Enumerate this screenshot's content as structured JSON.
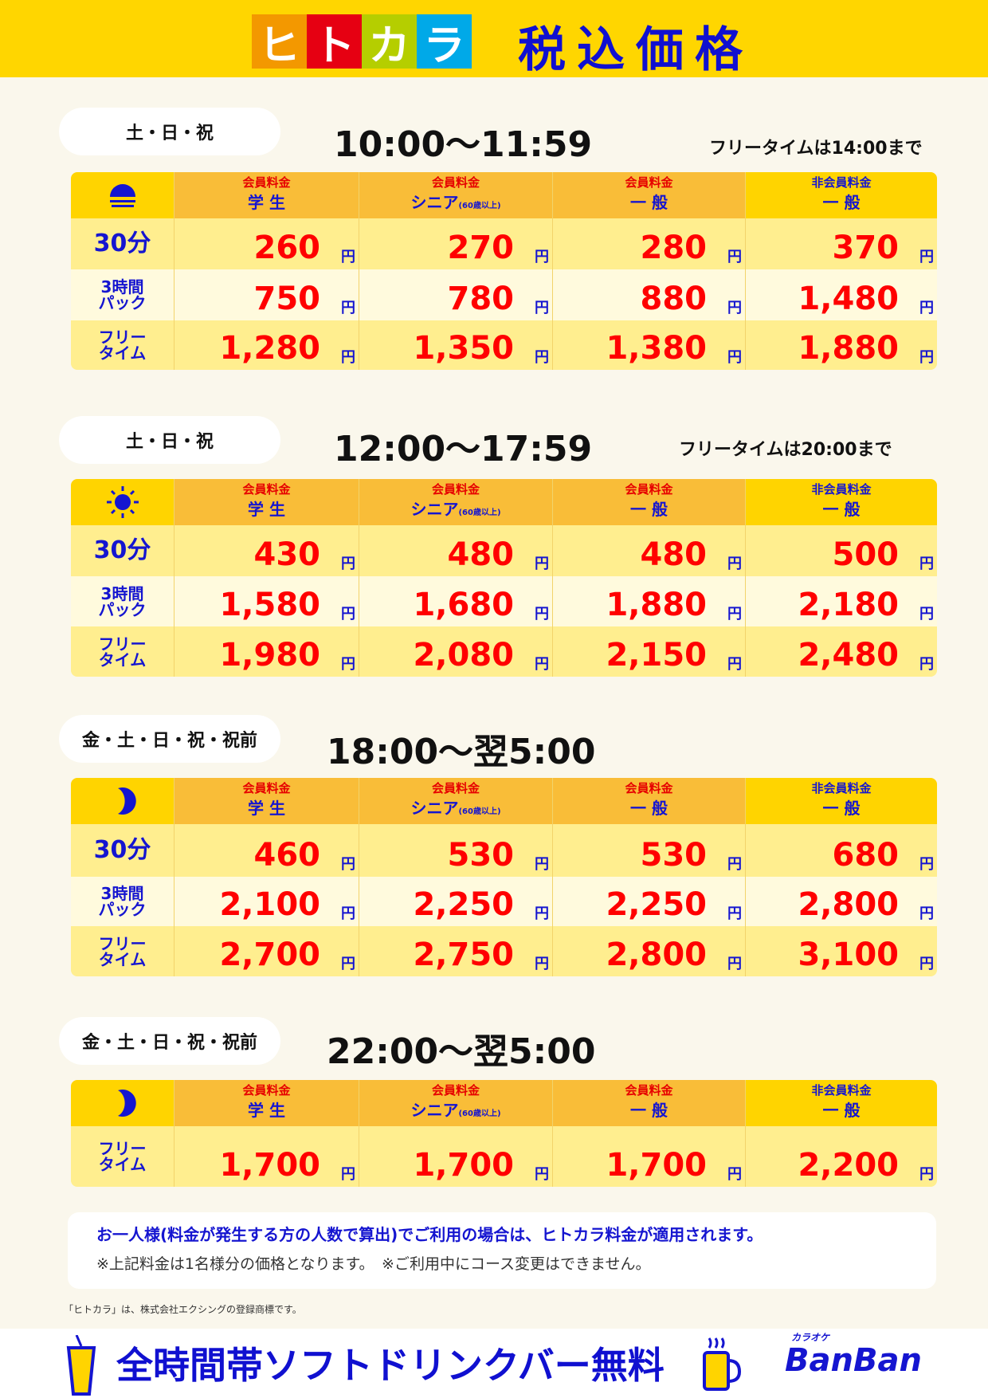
{
  "header": {
    "logo": [
      "ヒ",
      "ト",
      "カ",
      "ラ"
    ],
    "logo_colors": [
      "#F39800",
      "#E60012",
      "#B5CE00",
      "#00A9E8"
    ],
    "title": "税込価格"
  },
  "columns": [
    {
      "top": "会員料金",
      "bottom": "学 生",
      "sub": ""
    },
    {
      "top": "会員料金",
      "bottom": "シニア",
      "sub": "(60歳以上)"
    },
    {
      "top": "会員料金",
      "bottom": "一 般",
      "sub": ""
    },
    {
      "top": "非会員料金",
      "bottom": "一 般",
      "sub": ""
    }
  ],
  "row_labels": {
    "30min": [
      "30分"
    ],
    "3h": [
      "3時間",
      "パック"
    ],
    "free": [
      "フリー",
      "タイム"
    ]
  },
  "yen": "円",
  "sections": [
    {
      "days": "土・日・祝",
      "time": "10:00～11:59",
      "note": "フリータイムは14:00まで",
      "icon": "sunrise-icon",
      "rows": [
        {
          "label": "30min",
          "prices": [
            "260",
            "270",
            "280",
            "370"
          ]
        },
        {
          "label": "3h",
          "prices": [
            "750",
            "780",
            "880",
            "1,480"
          ]
        },
        {
          "label": "free",
          "prices": [
            "1,280",
            "1,350",
            "1,380",
            "1,880"
          ]
        }
      ]
    },
    {
      "days": "土・日・祝",
      "time": "12:00～17:59",
      "note": "フリータイムは20:00まで",
      "icon": "sun-icon",
      "rows": [
        {
          "label": "30min",
          "prices": [
            "430",
            "480",
            "480",
            "500"
          ]
        },
        {
          "label": "3h",
          "prices": [
            "1,580",
            "1,680",
            "1,880",
            "2,180"
          ]
        },
        {
          "label": "free",
          "prices": [
            "1,980",
            "2,080",
            "2,150",
            "2,480"
          ]
        }
      ]
    },
    {
      "days": "金・土・日・祝・祝前",
      "time": "18:00～翌5:00",
      "note": "",
      "icon": "moon-icon",
      "rows": [
        {
          "label": "30min",
          "prices": [
            "460",
            "530",
            "530",
            "680"
          ]
        },
        {
          "label": "3h",
          "prices": [
            "2,100",
            "2,250",
            "2,250",
            "2,800"
          ]
        },
        {
          "label": "free",
          "prices": [
            "2,700",
            "2,750",
            "2,800",
            "3,100"
          ]
        }
      ]
    },
    {
      "days": "金・土・日・祝・祝前",
      "time": "22:00～翌5:00",
      "note": "",
      "icon": "moon-icon",
      "rows": [
        {
          "label": "free",
          "prices": [
            "1,700",
            "1,700",
            "1,700",
            "2,200"
          ]
        }
      ]
    }
  ],
  "notice": {
    "line1": "お一人様(料金が発生する方の人数で算出)でご利用の場合は、ヒトカラ料金が適用されます。",
    "line2": "※上記料金は1名様分の価格となります。　※ご利用中にコース変更はできません。"
  },
  "trademark": "「ヒトカラ」は、株式会社エクシングの登録商標です。",
  "banner": {
    "text": "全時間帯ソフトドリンクバー無料",
    "brand_small": "カラオケ",
    "brand": "BanBan"
  },
  "colors": {
    "blue": "#1515D0",
    "red": "#FF0000",
    "yellow": "#FFD600",
    "orange": "#F9BD38"
  }
}
